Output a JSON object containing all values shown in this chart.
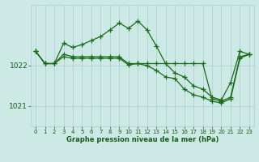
{
  "hours": [
    0,
    1,
    2,
    3,
    4,
    5,
    6,
    7,
    8,
    9,
    10,
    11,
    12,
    13,
    14,
    15,
    16,
    17,
    18,
    19,
    20,
    21,
    22,
    23
  ],
  "series_hi": [
    1022.35,
    1022.05,
    1022.05,
    1022.55,
    1022.45,
    1022.52,
    1022.62,
    1022.72,
    1022.88,
    1023.05,
    1022.92,
    1023.1,
    1022.88,
    1022.48,
    1022.05,
    1021.82,
    1021.72,
    1021.5,
    1021.42,
    1021.22,
    1021.15,
    1021.58,
    1022.35,
    1022.28
  ],
  "series_lo": [
    1022.35,
    1022.05,
    1022.05,
    1022.22,
    1022.18,
    1022.18,
    1022.18,
    1022.18,
    1022.18,
    1022.18,
    1022.02,
    1022.05,
    1022.0,
    1021.88,
    1021.72,
    1021.68,
    1021.42,
    1021.28,
    1021.22,
    1021.12,
    1021.08,
    1021.18,
    1022.18,
    1022.28
  ],
  "series_avg": [
    1022.35,
    1022.05,
    1022.05,
    1022.28,
    1022.22,
    1022.22,
    1022.22,
    1022.22,
    1022.22,
    1022.22,
    1022.05,
    1022.05,
    1022.05,
    1022.05,
    1022.05,
    1022.05,
    1022.05,
    1022.05,
    1022.05,
    1021.18,
    1021.12,
    1021.22,
    1022.22,
    1022.28
  ],
  "line_color": "#1a6b1a",
  "bg_color": "#cce9e5",
  "grid_color": "#aacfcc",
  "text_color": "#1a5c1a",
  "ylim": [
    1020.5,
    1023.5
  ],
  "yticks": [
    1021,
    1022
  ],
  "ytick_fontsize": 6.5,
  "xtick_fontsize": 5.0,
  "xlabel": "Graphe pression niveau de la mer (hPa)",
  "xlabel_fontsize": 6.0,
  "linewidth": 0.9,
  "marker": "+",
  "markersize": 4.0,
  "markeredgewidth": 0.9
}
